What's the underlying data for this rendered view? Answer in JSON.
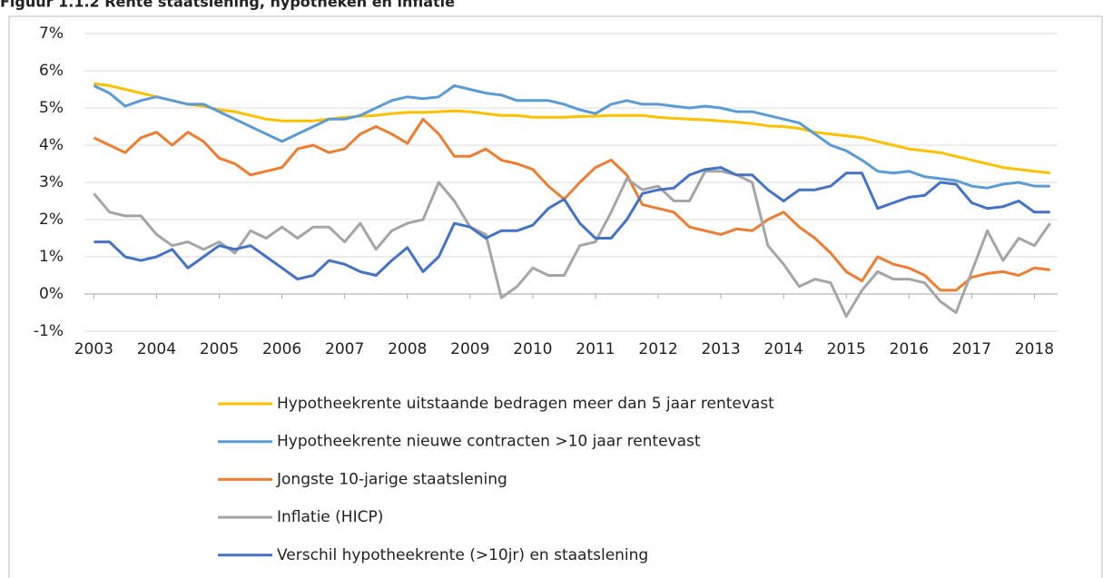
{
  "chart_data": {
    "type": "line",
    "title": "Figuur 1.1.2 Rente staatslening, hypotheken en inflatie",
    "x": [
      2003,
      2003.25,
      2003.5,
      2003.75,
      2004,
      2004.25,
      2004.5,
      2004.75,
      2005,
      2005.25,
      2005.5,
      2005.75,
      2006,
      2006.25,
      2006.5,
      2006.75,
      2007,
      2007.25,
      2007.5,
      2007.75,
      2008,
      2008.25,
      2008.5,
      2008.75,
      2009,
      2009.25,
      2009.5,
      2009.75,
      2010,
      2010.25,
      2010.5,
      2010.75,
      2011,
      2011.25,
      2011.5,
      2011.75,
      2012,
      2012.25,
      2012.5,
      2012.75,
      2013,
      2013.25,
      2013.5,
      2013.75,
      2014,
      2014.25,
      2014.5,
      2014.75,
      2015,
      2015.25,
      2015.5,
      2015.75,
      2016,
      2016.25,
      2016.5,
      2016.75,
      2017,
      2017.25,
      2017.5,
      2017.75,
      2018,
      2018.25
    ],
    "series": [
      {
        "name": "Hypotheekrente uitstaande bedragen meer dan 5 jaar rentevast",
        "color": "#ffc000",
        "values": [
          5.65,
          5.6,
          5.5,
          5.4,
          5.3,
          5.2,
          5.1,
          5.05,
          4.95,
          4.9,
          4.8,
          4.7,
          4.65,
          4.65,
          4.65,
          4.7,
          4.75,
          4.78,
          4.8,
          4.85,
          4.88,
          4.88,
          4.9,
          4.92,
          4.9,
          4.85,
          4.8,
          4.8,
          4.75,
          4.75,
          4.75,
          4.77,
          4.78,
          4.8,
          4.8,
          4.8,
          4.75,
          4.72,
          4.7,
          4.68,
          4.65,
          4.62,
          4.58,
          4.52,
          4.5,
          4.45,
          4.35,
          4.3,
          4.25,
          4.2,
          4.1,
          4.0,
          3.9,
          3.85,
          3.8,
          3.7,
          3.6,
          3.5,
          3.4,
          3.35,
          3.3,
          3.25
        ]
      },
      {
        "name": "Hypotheekrente nieuwe contracten >10 jaar rentevast",
        "color": "#5b9bd5",
        "values": [
          5.6,
          5.4,
          5.05,
          5.2,
          5.3,
          5.2,
          5.1,
          5.1,
          4.9,
          4.7,
          4.5,
          4.3,
          4.1,
          4.3,
          4.5,
          4.7,
          4.7,
          4.8,
          5.0,
          5.2,
          5.3,
          5.25,
          5.3,
          5.6,
          5.5,
          5.4,
          5.35,
          5.2,
          5.2,
          5.2,
          5.1,
          4.95,
          4.85,
          5.1,
          5.2,
          5.1,
          5.1,
          5.05,
          5.0,
          5.05,
          5.0,
          4.9,
          4.9,
          4.8,
          4.7,
          4.6,
          4.3,
          4.0,
          3.85,
          3.6,
          3.3,
          3.25,
          3.3,
          3.15,
          3.1,
          3.05,
          2.9,
          2.85,
          2.95,
          3.0,
          2.9,
          2.9
        ]
      },
      {
        "name": "Jongste 10-jarige staatslening",
        "color": "#ed7d31",
        "values": [
          4.2,
          4.0,
          3.8,
          4.2,
          4.35,
          4.0,
          4.35,
          4.1,
          3.65,
          3.5,
          3.2,
          3.3,
          3.4,
          3.9,
          4.0,
          3.8,
          3.9,
          4.3,
          4.5,
          4.3,
          4.05,
          4.7,
          4.3,
          3.7,
          3.7,
          3.9,
          3.6,
          3.5,
          3.35,
          2.9,
          2.55,
          3.0,
          3.4,
          3.6,
          3.2,
          2.4,
          2.3,
          2.2,
          1.8,
          1.7,
          1.6,
          1.75,
          1.7,
          2.0,
          2.2,
          1.8,
          1.5,
          1.1,
          0.6,
          0.35,
          1.0,
          0.8,
          0.7,
          0.5,
          0.1,
          0.1,
          0.45,
          0.55,
          0.6,
          0.5,
          0.7,
          0.65
        ]
      },
      {
        "name": "Inflatie (HICP)",
        "color": "#a5a5a5",
        "values": [
          2.7,
          2.2,
          2.1,
          2.1,
          1.6,
          1.3,
          1.4,
          1.2,
          1.4,
          1.1,
          1.7,
          1.5,
          1.8,
          1.5,
          1.8,
          1.8,
          1.4,
          1.9,
          1.2,
          1.7,
          1.9,
          2.0,
          3.0,
          2.5,
          1.8,
          1.6,
          -0.1,
          0.2,
          0.7,
          0.5,
          0.5,
          1.3,
          1.4,
          2.2,
          3.1,
          2.8,
          2.9,
          2.5,
          2.5,
          3.3,
          3.3,
          3.2,
          3.0,
          1.3,
          0.8,
          0.2,
          0.4,
          0.3,
          -0.6,
          0.1,
          0.6,
          0.4,
          0.4,
          0.3,
          -0.2,
          -0.5,
          0.6,
          1.7,
          0.9,
          1.5,
          1.3,
          1.9
        ]
      },
      {
        "name": "Verschil hypotheekrente (>10jr) en staatslening",
        "color": "#4472c4",
        "values": [
          1.4,
          1.4,
          1.0,
          0.9,
          1.0,
          1.2,
          0.7,
          1.0,
          1.3,
          1.2,
          1.3,
          1.0,
          0.7,
          0.4,
          0.5,
          0.9,
          0.8,
          0.6,
          0.5,
          0.9,
          1.25,
          0.6,
          1.0,
          1.9,
          1.8,
          1.5,
          1.7,
          1.7,
          1.85,
          2.3,
          2.55,
          1.9,
          1.5,
          1.5,
          2.0,
          2.7,
          2.8,
          2.85,
          3.2,
          3.35,
          3.4,
          3.2,
          3.2,
          2.8,
          2.5,
          2.8,
          2.8,
          2.9,
          3.25,
          3.25,
          2.3,
          2.45,
          2.6,
          2.65,
          3.0,
          2.95,
          2.45,
          2.3,
          2.35,
          2.5,
          2.2,
          2.2
        ]
      }
    ],
    "xlim": [
      2002.85,
      2018.37
    ],
    "xticks": [
      2003,
      2004,
      2005,
      2006,
      2007,
      2008,
      2009,
      2010,
      2011,
      2012,
      2013,
      2014,
      2015,
      2016,
      2017,
      2018
    ],
    "ylim": [
      -1,
      7
    ],
    "yticks": [
      {
        "value": -1,
        "label": "-1%"
      },
      {
        "value": 0,
        "label": "0%"
      },
      {
        "value": 1,
        "label": "1%"
      },
      {
        "value": 2,
        "label": "2%"
      },
      {
        "value": 3,
        "label": "3%"
      },
      {
        "value": 4,
        "label": "4%"
      },
      {
        "value": 5,
        "label": "5%"
      },
      {
        "value": 6,
        "label": "6%"
      },
      {
        "value": 7,
        "label": "7%"
      }
    ],
    "grid": true,
    "legend": "bottom"
  }
}
